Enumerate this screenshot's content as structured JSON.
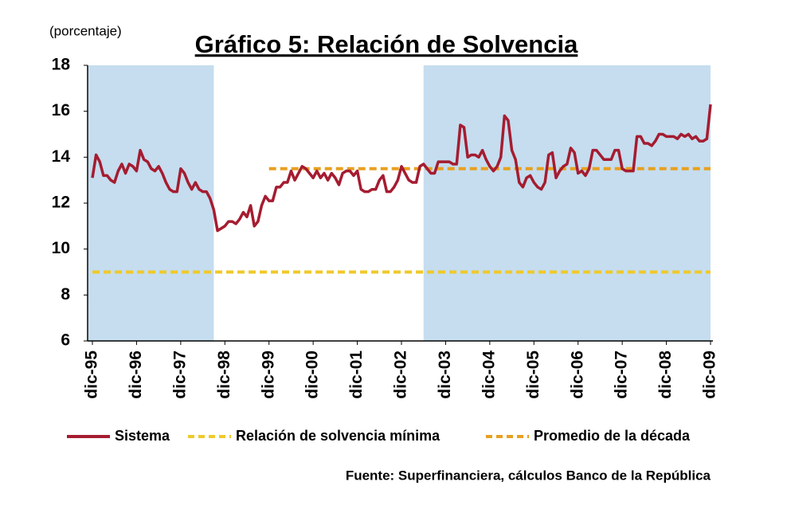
{
  "chart_data": {
    "type": "line",
    "title": "Gráfico 5: Relación de Solvencia",
    "subtitle": "(porcentaje)",
    "source": "Fuente: Superfinanciera, cálculos Banco de la República",
    "ylim": [
      6,
      18
    ],
    "yticks": [
      6,
      8,
      10,
      12,
      14,
      16,
      18
    ],
    "categories": [
      "dic-95",
      null,
      null,
      null,
      null,
      null,
      null,
      null,
      null,
      null,
      null,
      null,
      "dic-96",
      null,
      null,
      null,
      null,
      null,
      null,
      null,
      null,
      null,
      null,
      null,
      "dic-97",
      null,
      null,
      null,
      null,
      null,
      null,
      null,
      null,
      null,
      null,
      null,
      "dic-98",
      null,
      null,
      null,
      null,
      null,
      null,
      null,
      null,
      null,
      null,
      null,
      "dic-99",
      null,
      null,
      null,
      null,
      null,
      null,
      null,
      null,
      null,
      null,
      null,
      "dic-00",
      null,
      null,
      null,
      null,
      null,
      null,
      null,
      null,
      null,
      null,
      null,
      "dic-01",
      null,
      null,
      null,
      null,
      null,
      null,
      null,
      null,
      null,
      null,
      null,
      "dic-02",
      null,
      null,
      null,
      null,
      null,
      null,
      null,
      null,
      null,
      null,
      null,
      "dic-03",
      null,
      null,
      null,
      null,
      null,
      null,
      null,
      null,
      null,
      null,
      null,
      "dic-04",
      null,
      null,
      null,
      null,
      null,
      null,
      null,
      null,
      null,
      null,
      null,
      "dic-05",
      null,
      null,
      null,
      null,
      null,
      null,
      null,
      null,
      null,
      null,
      null,
      "dic-06",
      null,
      null,
      null,
      null,
      null,
      null,
      null,
      null,
      null,
      null,
      null,
      "dic-07",
      null,
      null,
      null,
      null,
      null,
      null,
      null,
      null,
      null,
      null,
      null,
      "dic-08",
      null,
      null,
      null,
      null,
      null,
      null,
      null,
      null,
      null,
      null,
      null,
      "dic-09"
    ],
    "shaded": [
      [
        0,
        33
      ],
      [
        90,
        168
      ]
    ],
    "shade_color": "#c5ddef",
    "series": [
      {
        "name": "Sistema",
        "color": "#a51c30",
        "values": [
          13.1,
          14.1,
          13.8,
          13.2,
          13.2,
          13.0,
          12.9,
          13.4,
          13.7,
          13.3,
          13.7,
          13.6,
          13.4,
          14.3,
          13.9,
          13.8,
          13.5,
          13.4,
          13.6,
          13.3,
          12.9,
          12.6,
          12.5,
          12.5,
          13.5,
          13.3,
          12.9,
          12.6,
          12.9,
          12.6,
          12.5,
          12.5,
          12.2,
          11.7,
          10.8,
          10.9,
          11.0,
          11.2,
          11.2,
          11.1,
          11.3,
          11.6,
          11.4,
          11.9,
          11.0,
          11.2,
          11.9,
          12.3,
          12.1,
          12.1,
          12.7,
          12.7,
          12.9,
          12.9,
          13.4,
          13.0,
          13.3,
          13.6,
          13.5,
          13.3,
          13.1,
          13.4,
          13.1,
          13.3,
          13.0,
          13.3,
          13.1,
          12.8,
          13.3,
          13.4,
          13.4,
          13.2,
          13.4,
          12.6,
          12.5,
          12.5,
          12.6,
          12.6,
          13.0,
          13.2,
          12.5,
          12.5,
          12.7,
          13.0,
          13.6,
          13.3,
          13.0,
          12.9,
          12.9,
          13.6,
          13.7,
          13.5,
          13.3,
          13.3,
          13.8,
          13.8,
          13.8,
          13.8,
          13.7,
          13.7,
          15.4,
          15.3,
          14.0,
          14.1,
          14.1,
          14.0,
          14.3,
          13.9,
          13.6,
          13.4,
          13.6,
          14.0,
          15.8,
          15.6,
          14.3,
          13.9,
          12.9,
          12.7,
          13.1,
          13.2,
          12.9,
          12.7,
          12.6,
          12.9,
          14.1,
          14.2,
          13.1,
          13.4,
          13.6,
          13.7,
          14.4,
          14.2,
          13.3,
          13.4,
          13.2,
          13.5,
          14.3,
          14.3,
          14.1,
          13.9,
          13.9,
          13.9,
          14.3,
          14.3,
          13.5,
          13.4,
          13.4,
          13.4,
          14.9,
          14.9,
          14.6,
          14.6,
          14.5,
          14.7,
          15.0,
          15.0,
          14.9,
          14.9,
          14.9,
          14.8,
          15.0,
          14.9,
          15.0,
          14.8,
          14.9,
          14.7,
          14.7,
          14.8,
          16.3
        ]
      }
    ],
    "reference_lines": [
      {
        "name": "Relación de solvencia mínima",
        "color": "#f0c92a",
        "value": 9,
        "from": "dic-95"
      },
      {
        "name": "Promedio de la década",
        "color": "#e8a020",
        "value": 13.5,
        "from": "dic-99"
      }
    ]
  }
}
